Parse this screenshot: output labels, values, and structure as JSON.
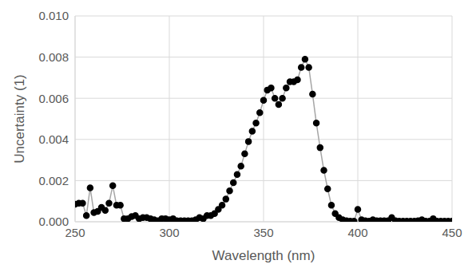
{
  "chart_data": {
    "type": "line",
    "x_label": "Wavelength (nm)",
    "y_label": "Uncertainty (1)",
    "x": [
      250,
      252,
      254,
      256,
      258,
      260,
      262,
      264,
      266,
      268,
      270,
      272,
      274,
      276,
      278,
      280,
      282,
      284,
      286,
      288,
      290,
      292,
      294,
      296,
      298,
      300,
      302,
      304,
      306,
      308,
      310,
      312,
      314,
      316,
      318,
      320,
      322,
      324,
      326,
      328,
      330,
      332,
      334,
      336,
      338,
      340,
      342,
      344,
      346,
      348,
      350,
      352,
      354,
      356,
      358,
      360,
      362,
      364,
      366,
      368,
      370,
      372,
      374,
      376,
      378,
      380,
      382,
      384,
      386,
      388,
      390,
      392,
      394,
      396,
      398,
      400,
      402,
      404,
      406,
      408,
      410,
      412,
      414,
      416,
      418,
      420,
      422,
      424,
      426,
      428,
      430,
      432,
      434,
      436,
      438,
      440,
      442,
      444,
      446,
      448,
      450
    ],
    "values": [
      0.00085,
      0.0009,
      0.0009,
      0.0003,
      0.00165,
      0.00045,
      0.0005,
      0.0007,
      0.00055,
      0.0009,
      0.00175,
      0.0008,
      0.0008,
      0.00015,
      0.00015,
      0.00025,
      0.0003,
      0.00015,
      0.0002,
      0.0002,
      0.00015,
      0.0001,
      5e-05,
      0.00015,
      0.00015,
      0.0001,
      0.00015,
      5e-05,
      5e-05,
      5e-05,
      5e-05,
      5e-05,
      0.0001,
      0.0002,
      0.00015,
      0.0003,
      0.0003,
      0.0004,
      0.0006,
      0.0008,
      0.0011,
      0.0015,
      0.0019,
      0.0023,
      0.0027,
      0.0033,
      0.0039,
      0.0044,
      0.0048,
      0.0053,
      0.0059,
      0.0064,
      0.0065,
      0.006,
      0.0057,
      0.006,
      0.0065,
      0.0068,
      0.0068,
      0.0069,
      0.0075,
      0.0079,
      0.0075,
      0.0062,
      0.0048,
      0.0036,
      0.0025,
      0.0016,
      0.0008,
      0.0004,
      0.0002,
      0.0001,
      5e-05,
      3e-05,
      3e-05,
      0.0006,
      0.0001,
      5e-05,
      3e-05,
      0.0001,
      5e-05,
      5e-05,
      5e-05,
      5e-05,
      0.0002,
      5e-05,
      3e-05,
      3e-05,
      3e-05,
      3e-05,
      3e-05,
      5e-05,
      0.0001,
      3e-05,
      3e-05,
      0.00015,
      3e-05,
      3e-05,
      3e-05,
      3e-05,
      3e-05
    ],
    "color": "#000000",
    "marker": "circle",
    "xlim": [
      250,
      450
    ],
    "xticks": [
      250,
      300,
      350,
      400,
      450
    ],
    "ylim": [
      0,
      0.01
    ],
    "yticks": [
      {
        "value": 0,
        "label": "0.000"
      },
      {
        "value": 0.002,
        "label": "0.002"
      },
      {
        "value": 0.004,
        "label": "0.004"
      },
      {
        "value": 0.006,
        "label": "0.006"
      },
      {
        "value": 0.008,
        "label": "0.008"
      },
      {
        "value": 0.01,
        "label": "0.010"
      }
    ],
    "grid": true
  }
}
